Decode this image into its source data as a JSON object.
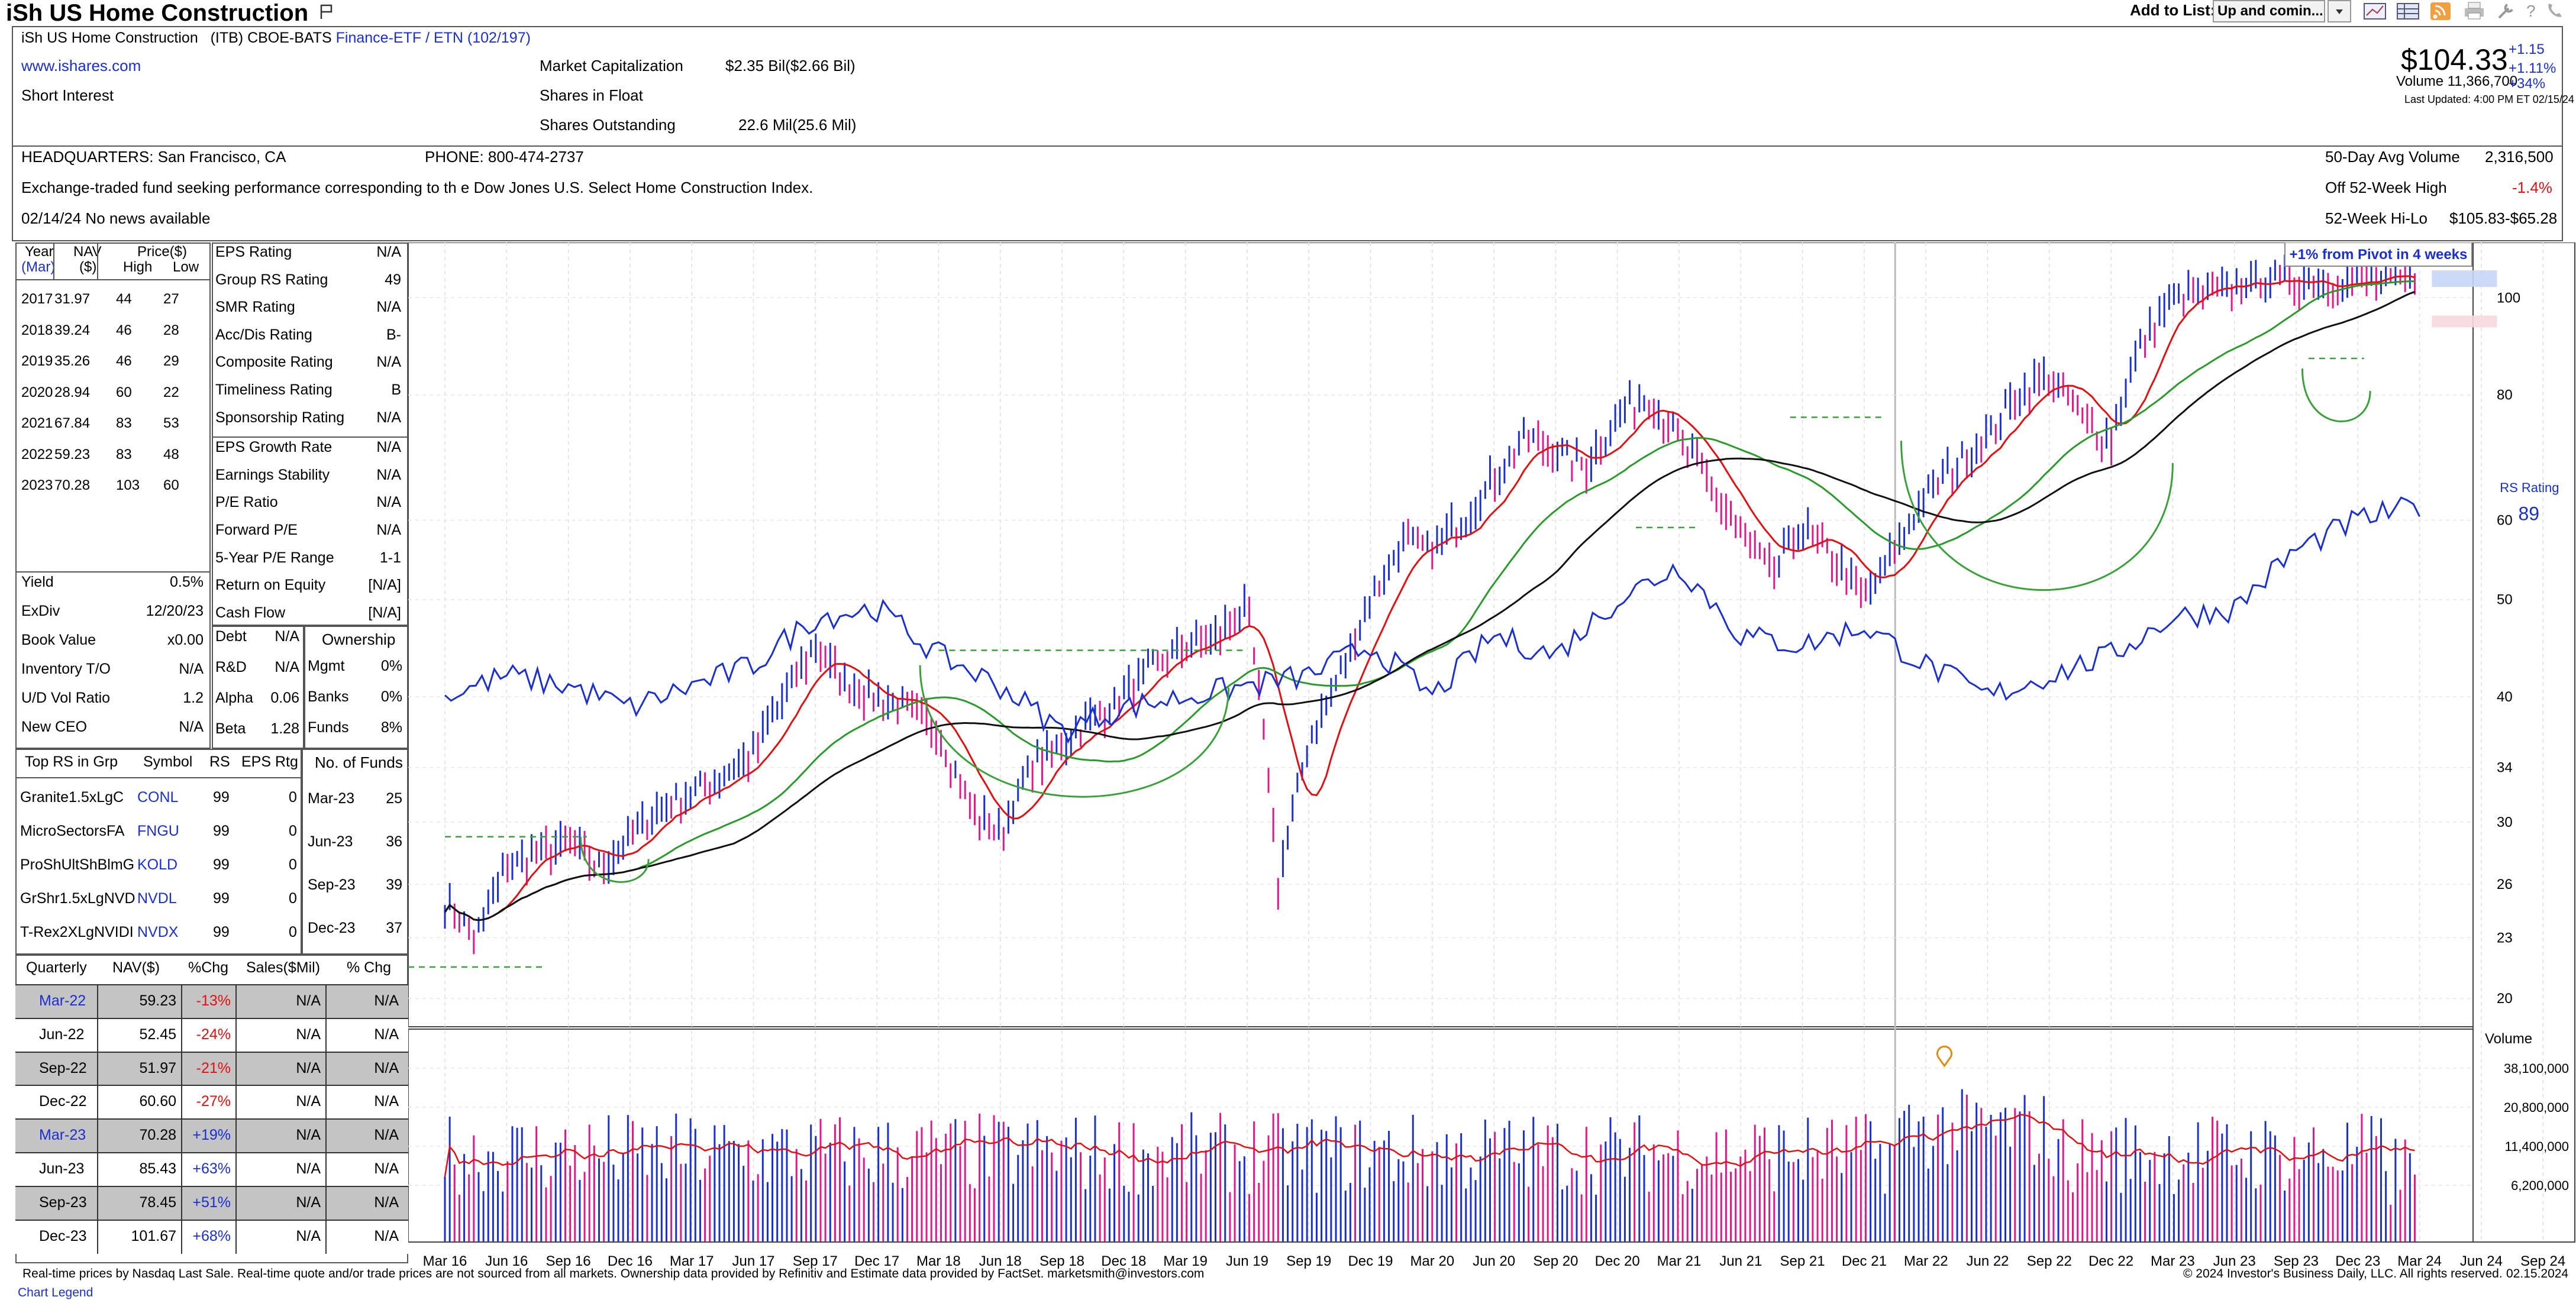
{
  "header": {
    "title": "iSh US Home Construction",
    "subtitle_name": "iSh US Home Construction",
    "subtitle_ticker": "(ITB) CBOE-BATS",
    "subtitle_group": "Finance-ETF / ETN (102/197)",
    "website": "www.ishares.com",
    "short_interest_label": "Short Interest",
    "market_cap_label": "Market Capitalization",
    "market_cap_value": "$2.35 Bil($2.66 Bil)",
    "float_label": "Shares in Float",
    "shares_out_label": "Shares Outstanding",
    "shares_out_value": "22.6 Mil(25.6 Mil)",
    "add_to_list_label": "Add to List:",
    "add_to_list_value": "Up and comin...",
    "price": "$104.33",
    "change": "+1.15",
    "change_pct": "+1.11%",
    "volume": "Volume 11,366,700",
    "volume_pct": "+34%",
    "last_updated": "Last Updated: 4:00 PM ET 02/15/24"
  },
  "info": {
    "headquarters": "HEADQUARTERS: San Francisco, CA",
    "phone": "PHONE: 800-474-2737",
    "description": "Exchange-traded fund seeking performance corresponding to th e Dow Jones U.S. Select Home Construction Index.",
    "news": "02/14/24 No news available",
    "avg_vol_label": "50-Day Avg Volume",
    "avg_vol_value": "2,316,500",
    "off_high_label": "Off 52-Week High",
    "off_high_value": "-1.4%",
    "hilo_label": "52-Week Hi-Lo",
    "hilo_value": "$105.83-$65.28"
  },
  "annual": {
    "headers": [
      "Year",
      "(Mar)",
      "NAV",
      "($)",
      "Price($)",
      "High",
      "Low"
    ],
    "rows": [
      [
        "2017",
        "31.97",
        "44",
        "27"
      ],
      [
        "2018",
        "39.24",
        "46",
        "28"
      ],
      [
        "2019",
        "35.26",
        "46",
        "29"
      ],
      [
        "2020",
        "28.94",
        "60",
        "22"
      ],
      [
        "2021",
        "67.84",
        "83",
        "53"
      ],
      [
        "2022",
        "59.23",
        "83",
        "48"
      ],
      [
        "2023",
        "70.28",
        "103",
        "60"
      ]
    ]
  },
  "ratings": [
    [
      "EPS Rating",
      "N/A"
    ],
    [
      "Group RS Rating",
      "49"
    ],
    [
      "SMR Rating",
      "N/A"
    ],
    [
      "Acc/Dis Rating",
      "B-"
    ],
    [
      "Composite Rating",
      "N/A"
    ],
    [
      "Timeliness Rating",
      "B"
    ],
    [
      "Sponsorship Rating",
      "N/A"
    ],
    [
      "EPS Growth Rate",
      "N/A"
    ],
    [
      "Earnings Stability",
      "N/A"
    ],
    [
      "P/E Ratio",
      "N/A"
    ],
    [
      "Forward P/E",
      "N/A"
    ],
    [
      "5-Year P/E Range",
      "1-1"
    ],
    [
      "Return on Equity",
      "[N/A]"
    ],
    [
      "Cash Flow",
      "[N/A]"
    ]
  ],
  "yield": [
    [
      "Yield",
      "0.5%"
    ],
    [
      "ExDiv",
      "12/20/23"
    ],
    [
      "Book Value",
      "x0.00"
    ],
    [
      "Inventory T/O",
      "N/A"
    ],
    [
      "U/D Vol Ratio",
      "1.2"
    ],
    [
      "New CEO",
      "N/A"
    ]
  ],
  "debt": [
    [
      "Debt",
      "N/A"
    ],
    [
      "R&D",
      "N/A"
    ],
    [
      "Alpha",
      "0.06"
    ],
    [
      "Beta",
      "1.28"
    ]
  ],
  "ownership": {
    "title": "Ownership",
    "rows": [
      [
        "Mgmt",
        "0%"
      ],
      [
        "Banks",
        "0%"
      ],
      [
        "Funds",
        "8%"
      ]
    ]
  },
  "top_rs": {
    "headers": [
      "Top RS in Grp",
      "Symbol",
      "RS",
      "EPS Rtg"
    ],
    "rows": [
      [
        "Granite1.5xLgC",
        "CONL",
        "99",
        "0"
      ],
      [
        "MicroSectorsFA",
        "FNGU",
        "99",
        "0"
      ],
      [
        "ProShUltShBlmG",
        "KOLD",
        "99",
        "0"
      ],
      [
        "GrShr1.5xLgNVD",
        "NVDL",
        "99",
        "0"
      ],
      [
        "T-Rex2XLgNVIDI",
        "NVDX",
        "99",
        "0"
      ]
    ]
  },
  "funds": {
    "title": "No. of Funds",
    "rows": [
      [
        "Mar-23",
        "25"
      ],
      [
        "Jun-23",
        "36"
      ],
      [
        "Sep-23",
        "39"
      ],
      [
        "Dec-23",
        "37"
      ]
    ]
  },
  "quarterly": {
    "headers": [
      "Quarterly",
      "NAV($)",
      "%Chg",
      "Sales($Mil)",
      "% Chg"
    ],
    "rows": [
      [
        "Mar-22",
        "59.23",
        "-13%",
        "N/A",
        "N/A"
      ],
      [
        "Jun-22",
        "52.45",
        "-24%",
        "N/A",
        "N/A"
      ],
      [
        "Sep-22",
        "51.97",
        "-21%",
        "N/A",
        "N/A"
      ],
      [
        "Dec-22",
        "60.60",
        "-27%",
        "N/A",
        "N/A"
      ],
      [
        "Mar-23",
        "70.28",
        "+19%",
        "N/A",
        "N/A"
      ],
      [
        "Jun-23",
        "85.43",
        "+63%",
        "N/A",
        "N/A"
      ],
      [
        "Sep-23",
        "78.45",
        "+51%",
        "N/A",
        "N/A"
      ],
      [
        "Dec-23",
        "101.67",
        "+68%",
        "N/A",
        "N/A"
      ]
    ]
  },
  "footer": {
    "disclaimer": "Real-time prices by Nasdaq Last Sale. Real-time quote and/or trade prices are not sourced from all markets. Ownership data provided by Refinitiv and Estimate data provided by FactSet. marketsmith@investors.com",
    "copyright": "© 2024 Investor's Business Daily, LLC. All rights reserved.",
    "date": "02.15.2024",
    "legend_link": "Chart Legend"
  },
  "colors": {
    "up": "#1a2fd0",
    "down": "#e0188c",
    "ma_fast": "#e01010",
    "ma_mid": "#2a9a2a",
    "ma_slow": "#111111",
    "rs": "#1a2fd0"
  },
  "chart_data": {
    "type": "line",
    "title": "",
    "pivot_note": "+1% from Pivot in 4 weeks",
    "rs_label": "RS Rating",
    "rs_value": "89",
    "volume_label": "Volume",
    "price_axis": {
      "scale": "log",
      "ticks": [
        "100",
        "80",
        "60",
        "50",
        "40",
        "34",
        "30",
        "26",
        "23",
        "20"
      ],
      "range": [
        19,
        112
      ]
    },
    "volume_axis": {
      "ticks": [
        "38,100,000",
        "20,800,000",
        "11,400,000",
        "6,200,000"
      ]
    },
    "x_labels": [
      "Mar 16",
      "Jun 16",
      "Sep 16",
      "Dec 16",
      "Mar 17",
      "Jun 17",
      "Sep 17",
      "Dec 17",
      "Mar 18",
      "Jun 18",
      "Sep 18",
      "Dec 18",
      "Mar 19",
      "Jun 19",
      "Sep 19",
      "Dec 19",
      "Mar 20",
      "Jun 20",
      "Sep 20",
      "Dec 20",
      "Mar 21",
      "Jun 21",
      "Sep 21",
      "Dec 21",
      "Mar 22",
      "Jun 22",
      "Sep 22",
      "Dec 22",
      "Mar 23",
      "Jun 23",
      "Sep 23",
      "Dec 23",
      "Mar 24",
      "Jun 24",
      "Sep 24"
    ],
    "price_series": {
      "name": "",
      "x_index": [
        0,
        0.5,
        1,
        1.5,
        2,
        2.5,
        3,
        3.5,
        4,
        4.5,
        5,
        5.5,
        6,
        6.5,
        7,
        7.5,
        8,
        8.5,
        9,
        9.5,
        10,
        10.5,
        11,
        11.5,
        12,
        12.5,
        13,
        13.5,
        14,
        14.5,
        15,
        15.5,
        16,
        16.2,
        16.5,
        17,
        17.5,
        18,
        18.5,
        19,
        19.5,
        20,
        20.5,
        21,
        21.5,
        22,
        22.5,
        23,
        23.5,
        24,
        24.5,
        25,
        25.5,
        26,
        26.5,
        27,
        27.5,
        28,
        28.5,
        29,
        29.5,
        30,
        30.5,
        31,
        31.5,
        32
      ],
      "close": [
        25,
        23,
        27,
        28,
        28.5,
        27,
        29,
        31,
        32,
        33.5,
        35,
        40,
        45,
        41,
        40,
        39,
        37,
        31,
        29,
        34,
        36,
        38,
        40,
        43,
        45,
        46,
        49,
        26,
        36,
        42,
        50,
        57,
        56,
        58,
        60,
        66,
        73,
        70,
        68,
        76,
        80,
        72,
        65,
        58,
        53,
        59,
        55,
        50,
        56,
        64,
        68,
        73,
        80,
        84,
        76,
        72,
        90,
        100,
        101,
        103,
        104,
        104,
        104,
        104,
        104,
        104
      ]
    },
    "rs_series": {
      "name": "RS Rating",
      "x_index": [
        0,
        1,
        2,
        3,
        4,
        5,
        6,
        7,
        8,
        9,
        10,
        11,
        12,
        13,
        14,
        15,
        16,
        17,
        18,
        19,
        20,
        21,
        22,
        23,
        24,
        25,
        26,
        27,
        28,
        29,
        30,
        31,
        32
      ],
      "rs_line": [
        40,
        42,
        41,
        39,
        41,
        43,
        48,
        49,
        44,
        41,
        37,
        39,
        40,
        41,
        42,
        45,
        40,
        46,
        44,
        50,
        54,
        46,
        45,
        47,
        43,
        40,
        42,
        44,
        48,
        49,
        56,
        60,
        62
      ]
    }
  }
}
